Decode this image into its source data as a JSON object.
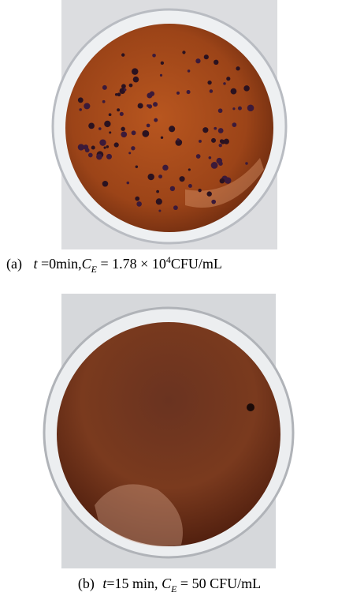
{
  "figures": [
    {
      "label": "(a)",
      "caption": [
        "t",
        " =0min,",
        "C",
        "E",
        " = 1.78 × 10",
        "4",
        "CFU/mL"
      ]
    },
    {
      "label": "(b)",
      "caption": [
        "t",
        "=15 min, ",
        "C",
        "E",
        " = 50 CFU/mL"
      ]
    }
  ]
}
